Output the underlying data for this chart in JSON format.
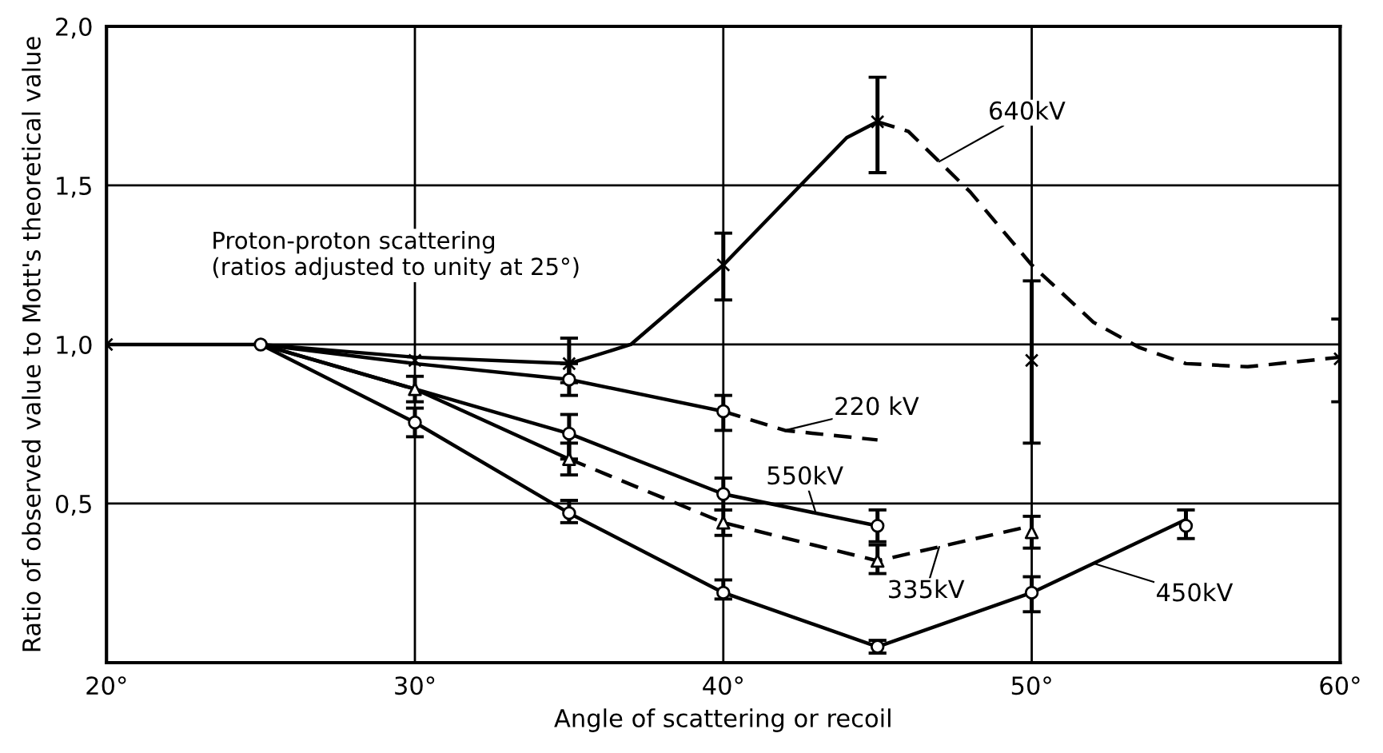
{
  "chart_data": {
    "type": "line",
    "xlabel": "Angle of scattering or recoil",
    "ylabel": "Ratio of observed value to Mott's theoretical value",
    "xlim": [
      20,
      60
    ],
    "ylim": [
      0,
      2.0
    ],
    "xticks": [
      {
        "value": 20,
        "label": "20°"
      },
      {
        "value": 30,
        "label": "30°"
      },
      {
        "value": 40,
        "label": "40°"
      },
      {
        "value": 50,
        "label": "50°"
      },
      {
        "value": 60,
        "label": "60°"
      }
    ],
    "yticks": [
      {
        "value": 0.5,
        "label": "0,5"
      },
      {
        "value": 1.0,
        "label": "1,0"
      },
      {
        "value": 1.5,
        "label": "1,5"
      },
      {
        "value": 2.0,
        "label": "2,0"
      }
    ],
    "grid": true,
    "series": [
      {
        "type": "line",
        "line_style": "solid",
        "color": "#000000",
        "x": [
          20,
          25,
          30,
          35,
          37,
          40,
          42,
          44,
          45
        ],
        "values": [
          1.0,
          1.0,
          0.96,
          0.94,
          1.0,
          1.25,
          1.45,
          1.65,
          1.7
        ]
      },
      {
        "type": "line",
        "line_style": "dashed",
        "color": "#000000",
        "x": [
          45,
          46,
          48,
          50,
          52,
          53.5,
          55,
          57,
          60
        ],
        "values": [
          1.7,
          1.67,
          1.48,
          1.25,
          1.07,
          0.99,
          0.94,
          0.93,
          0.96
        ]
      },
      {
        "type": "scatter",
        "marker": "cross",
        "color": "#000000",
        "x": [
          20,
          30,
          35,
          40,
          45,
          50,
          60
        ],
        "values": [
          1.0,
          0.95,
          0.94,
          1.25,
          1.7,
          0.95,
          0.955
        ],
        "errors": [
          null,
          null,
          [
            0.88,
            1.02
          ],
          [
            1.14,
            1.35
          ],
          [
            1.54,
            1.84
          ],
          [
            0.69,
            1.2
          ],
          [
            0.82,
            1.08
          ]
        ]
      },
      {
        "type": "line",
        "line_style": "solid",
        "color": "#000000",
        "x": [
          25,
          30,
          35,
          40
        ],
        "values": [
          1.0,
          0.94,
          0.89,
          0.79
        ]
      },
      {
        "type": "line",
        "line_style": "dashed",
        "color": "#000000",
        "x": [
          40,
          42,
          45
        ],
        "values": [
          0.79,
          0.73,
          0.7
        ]
      },
      {
        "type": "scatter",
        "marker": "circle",
        "color": "#000000",
        "x": [
          25,
          35,
          40
        ],
        "values": [
          1.0,
          0.89,
          0.79
        ],
        "errors": [
          null,
          [
            0.84,
            0.94
          ],
          [
            0.73,
            0.84
          ]
        ]
      },
      {
        "type": "line",
        "line_style": "solid",
        "color": "#000000",
        "x": [
          25,
          30,
          35,
          40,
          45
        ],
        "values": [
          1.0,
          0.86,
          0.72,
          0.53,
          0.43
        ]
      },
      {
        "type": "scatter",
        "marker": "circle",
        "color": "#000000",
        "x": [
          35,
          40,
          45
        ],
        "values": [
          0.72,
          0.53,
          0.43
        ],
        "errors": [
          [
            0.64,
            0.78
          ],
          [
            0.48,
            0.58
          ],
          [
            0.38,
            0.48
          ]
        ]
      },
      {
        "type": "line",
        "line_style": "solid",
        "color": "#000000",
        "x": [
          25,
          30,
          35
        ],
        "values": [
          1.0,
          0.86,
          0.64
        ]
      },
      {
        "type": "line",
        "line_style": "dashed",
        "color": "#000000",
        "x": [
          35,
          40,
          45,
          50
        ],
        "values": [
          0.64,
          0.44,
          0.32,
          0.43
        ]
      },
      {
        "type": "scatter",
        "marker": "triangle",
        "color": "#000000",
        "x": [
          30,
          35,
          40,
          45,
          50
        ],
        "values": [
          0.86,
          0.64,
          0.44,
          0.32,
          0.41
        ],
        "errors": [
          [
            0.82,
            0.9
          ],
          [
            0.59,
            0.69
          ],
          [
            0.4,
            0.48
          ],
          [
            0.28,
            0.37
          ],
          [
            0.36,
            0.46
          ]
        ]
      },
      {
        "type": "line",
        "line_style": "solid",
        "color": "#000000",
        "x": [
          25,
          30,
          35,
          40,
          45,
          50,
          55
        ],
        "values": [
          1.0,
          0.755,
          0.47,
          0.22,
          0.05,
          0.22,
          0.45
        ]
      },
      {
        "type": "scatter",
        "marker": "circle",
        "color": "#000000",
        "x": [
          30,
          35,
          40,
          45,
          50,
          55
        ],
        "values": [
          0.755,
          0.47,
          0.22,
          0.05,
          0.22,
          0.43
        ],
        "errors": [
          [
            0.71,
            0.8
          ],
          [
            0.44,
            0.51
          ],
          [
            0.2,
            0.26
          ],
          [
            0.03,
            0.07
          ],
          [
            0.16,
            0.27
          ],
          [
            0.39,
            0.48
          ]
        ]
      }
    ],
    "annotations": [
      "Proton-proton scattering\n(ratios adjusted to unity at 25°)",
      {
        "text": "640kV",
        "x": 47,
        "y": 1.575
      },
      {
        "text": "220 kV",
        "x": 42,
        "y": 0.73
      },
      {
        "text": "550kV",
        "x": 43,
        "y": 0.47
      },
      {
        "text": "335kV",
        "x": 47,
        "y": 0.364
      },
      {
        "text": "450kV",
        "x": 52,
        "y": 0.312
      }
    ]
  }
}
